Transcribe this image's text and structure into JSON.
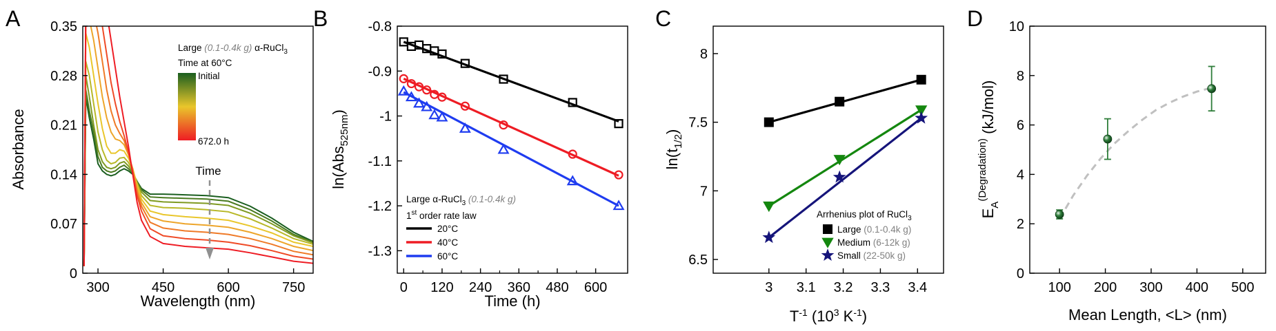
{
  "chart_data": [
    {
      "panel": "A",
      "type": "line",
      "xlabel": "Wavelength (nm)",
      "ylabel": "Absorbance",
      "xlim": [
        265,
        795
      ],
      "ylim": [
        0,
        0.35
      ],
      "xticks": [
        300,
        450,
        600,
        750
      ],
      "yticks": [
        0,
        0.07,
        0.14,
        0.21,
        0.28,
        0.35
      ],
      "ytick_labels": [
        "0",
        "0.07",
        "0.14",
        "0.21",
        "0.28",
        "0.35"
      ],
      "legend": {
        "title_pre": "Large",
        "title_gray": "(0.1-0.4k g)",
        "title_post": "α-RuCl",
        "title_sub": "3",
        "subtitle": "Time at 60°C",
        "colorbar_top": "Initial",
        "colorbar_bottom": "672.0 h",
        "position": "top-right"
      },
      "annotation": "Time",
      "colormap": [
        "#1a5e1f",
        "#e9c62b",
        "#ee1c24"
      ],
      "series": [
        {
          "color": "#1a5e1f",
          "x": [
            268,
            272,
            280,
            290,
            300,
            310,
            320,
            330,
            340,
            350,
            360,
            370,
            380,
            390,
            400,
            420,
            450,
            500,
            550,
            600,
            650,
            700,
            750,
            795
          ],
          "y": [
            0.01,
            0.25,
            0.22,
            0.19,
            0.155,
            0.145,
            0.14,
            0.138,
            0.14,
            0.145,
            0.148,
            0.145,
            0.14,
            0.13,
            0.12,
            0.112,
            0.112,
            0.111,
            0.11,
            0.107,
            0.095,
            0.078,
            0.058,
            0.045
          ]
        },
        {
          "color": "#4a7a20",
          "x": [
            268,
            272,
            280,
            290,
            300,
            310,
            320,
            330,
            340,
            350,
            360,
            370,
            380,
            390,
            400,
            420,
            450,
            500,
            550,
            600,
            650,
            700,
            750,
            795
          ],
          "y": [
            0.01,
            0.26,
            0.23,
            0.2,
            0.165,
            0.15,
            0.145,
            0.143,
            0.145,
            0.15,
            0.153,
            0.148,
            0.142,
            0.13,
            0.118,
            0.108,
            0.107,
            0.106,
            0.105,
            0.102,
            0.09,
            0.074,
            0.055,
            0.044
          ]
        },
        {
          "color": "#7f9a22",
          "x": [
            268,
            272,
            280,
            290,
            300,
            310,
            320,
            330,
            340,
            350,
            360,
            370,
            380,
            390,
            400,
            420,
            450,
            500,
            550,
            600,
            650,
            700,
            750,
            795
          ],
          "y": [
            0.01,
            0.28,
            0.25,
            0.21,
            0.175,
            0.158,
            0.15,
            0.148,
            0.15,
            0.156,
            0.158,
            0.152,
            0.143,
            0.128,
            0.115,
            0.103,
            0.101,
            0.1,
            0.099,
            0.096,
            0.085,
            0.07,
            0.053,
            0.043
          ]
        },
        {
          "color": "#b8b828",
          "x": [
            268,
            272,
            280,
            290,
            300,
            310,
            320,
            330,
            340,
            350,
            360,
            370,
            380,
            390,
            400,
            420,
            450,
            500,
            550,
            600,
            650,
            700,
            750,
            795
          ],
          "y": [
            0.01,
            0.3,
            0.28,
            0.24,
            0.2,
            0.175,
            0.16,
            0.155,
            0.157,
            0.163,
            0.164,
            0.157,
            0.145,
            0.127,
            0.11,
            0.096,
            0.093,
            0.092,
            0.09,
            0.087,
            0.077,
            0.064,
            0.049,
            0.041
          ]
        },
        {
          "color": "#e9c62b",
          "x": [
            268,
            272,
            280,
            290,
            300,
            310,
            320,
            330,
            340,
            350,
            360,
            370,
            380,
            390,
            400,
            420,
            450,
            500,
            550,
            600,
            650,
            700,
            750,
            795
          ],
          "y": [
            0.01,
            0.34,
            0.32,
            0.28,
            0.24,
            0.205,
            0.18,
            0.17,
            0.17,
            0.175,
            0.173,
            0.163,
            0.148,
            0.125,
            0.105,
            0.088,
            0.083,
            0.08,
            0.078,
            0.075,
            0.067,
            0.057,
            0.044,
            0.038
          ]
        },
        {
          "color": "#eda52a",
          "x": [
            268,
            272,
            280,
            290,
            300,
            310,
            320,
            330,
            340,
            350,
            360,
            370,
            380,
            390,
            400,
            420,
            450,
            500,
            550,
            600,
            650,
            700,
            750,
            795
          ],
          "y": [
            0.01,
            0.36,
            0.36,
            0.33,
            0.29,
            0.25,
            0.22,
            0.2,
            0.19,
            0.188,
            0.182,
            0.168,
            0.148,
            0.12,
            0.1,
            0.08,
            0.074,
            0.07,
            0.068,
            0.065,
            0.058,
            0.049,
            0.038,
            0.032
          ]
        },
        {
          "color": "#ef7a27",
          "x": [
            268,
            272,
            280,
            290,
            300,
            310,
            320,
            330,
            340,
            350,
            360,
            370,
            380,
            390,
            400,
            420,
            450,
            500,
            550,
            600,
            650,
            700,
            750,
            795
          ],
          "y": [
            0.01,
            0.38,
            0.38,
            0.37,
            0.34,
            0.3,
            0.26,
            0.23,
            0.21,
            0.198,
            0.188,
            0.17,
            0.145,
            0.115,
            0.095,
            0.072,
            0.064,
            0.06,
            0.058,
            0.055,
            0.049,
            0.041,
            0.031,
            0.026
          ]
        },
        {
          "color": "#ef4a26",
          "x": [
            268,
            272,
            280,
            290,
            300,
            310,
            320,
            330,
            340,
            350,
            360,
            370,
            380,
            390,
            400,
            420,
            450,
            500,
            550,
            600,
            650,
            700,
            750,
            795
          ],
          "y": [
            0.01,
            0.38,
            0.38,
            0.38,
            0.38,
            0.35,
            0.31,
            0.27,
            0.24,
            0.215,
            0.195,
            0.172,
            0.142,
            0.11,
            0.088,
            0.063,
            0.053,
            0.049,
            0.047,
            0.044,
            0.039,
            0.032,
            0.024,
            0.02
          ]
        },
        {
          "color": "#ee1c24",
          "x": [
            268,
            272,
            280,
            290,
            300,
            310,
            320,
            330,
            340,
            350,
            360,
            370,
            380,
            390,
            400,
            420,
            450,
            500,
            550,
            600,
            650,
            700,
            750,
            795
          ],
          "y": [
            0.01,
            0.38,
            0.38,
            0.38,
            0.38,
            0.38,
            0.37,
            0.33,
            0.29,
            0.25,
            0.215,
            0.18,
            0.14,
            0.1,
            0.075,
            0.052,
            0.042,
            0.038,
            0.036,
            0.034,
            0.029,
            0.023,
            0.017,
            0.014
          ]
        }
      ]
    },
    {
      "panel": "B",
      "type": "scatter",
      "xlabel": "Time (h)",
      "ylabel_main": "ln(Abs",
      "ylabel_sub": "525nm",
      "ylabel_close": ")",
      "xlim": [
        -20,
        700
      ],
      "ylim": [
        -1.35,
        -0.8
      ],
      "xticks": [
        0,
        120,
        240,
        360,
        480,
        600
      ],
      "xtick_labels": [
        "0",
        "120",
        "240",
        "360",
        "480",
        "600"
      ],
      "xticks_minor": [
        60,
        180,
        300,
        420,
        540
      ],
      "yticks": [
        -1.3,
        -1.2,
        -1.1,
        -1.0,
        -0.9,
        -0.8
      ],
      "ytick_labels": [
        "-1.3",
        "-1.2",
        "-1.1",
        "-1",
        "-0.9",
        "-0.8"
      ],
      "legend": {
        "title_pre": "Large ",
        "title_mid": "α-RuCl",
        "title_sub": "3",
        "title_gray": "(0.1-0.4k g)",
        "law_sup": "st",
        "law_pre": "1",
        "law_post": " order rate law",
        "position": "bottom-left"
      },
      "series": [
        {
          "name": "20°C",
          "color": "#000000",
          "marker": "square",
          "x": [
            0,
            24,
            48,
            72,
            96,
            120,
            192,
            312,
            528,
            672
          ],
          "y": [
            -0.835,
            -0.845,
            -0.842,
            -0.85,
            -0.855,
            -0.862,
            -0.883,
            -0.918,
            -0.97,
            -1.017
          ],
          "fit": [
            [
              0,
              -0.835
            ],
            [
              672,
              -1.012
            ]
          ]
        },
        {
          "name": "40°C",
          "color": "#ee1c24",
          "marker": "circle",
          "x": [
            0,
            24,
            48,
            72,
            96,
            120,
            192,
            312,
            528,
            672
          ],
          "y": [
            -0.917,
            -0.928,
            -0.935,
            -0.942,
            -0.952,
            -0.958,
            -0.978,
            -1.02,
            -1.085,
            -1.131
          ],
          "fit": [
            [
              0,
              -0.917
            ],
            [
              672,
              -1.133
            ]
          ]
        },
        {
          "name": "60°C",
          "color": "#1f3cf0",
          "marker": "triangle",
          "x": [
            0,
            24,
            48,
            72,
            96,
            120,
            192,
            312,
            528,
            672
          ],
          "y": [
            -0.945,
            -0.958,
            -0.972,
            -0.98,
            -0.998,
            -1.003,
            -1.028,
            -1.075,
            -1.145,
            -1.2
          ],
          "fit": [
            [
              0,
              -0.947
            ],
            [
              672,
              -1.2
            ]
          ]
        }
      ]
    },
    {
      "panel": "C",
      "type": "scatter",
      "xlabel_pre": "T",
      "xlabel_sup": "-1",
      "xlabel_mid": " (10",
      "xlabel_sup2": "3",
      "xlabel_post": " K",
      "xlabel_sup3": "-1",
      "xlabel_end": ")",
      "ylabel_pre": "ln(t",
      "ylabel_sub": "1/2",
      "ylabel_post": ")",
      "xlim": [
        2.85,
        3.47
      ],
      "ylim": [
        6.4,
        8.2
      ],
      "xticks": [
        3.0,
        3.1,
        3.2,
        3.3,
        3.4
      ],
      "xtick_labels": [
        "3",
        "3.1",
        "3.2",
        "3.3",
        "3.4"
      ],
      "yticks": [
        6.5,
        7.0,
        7.5,
        8.0
      ],
      "ytick_labels": [
        "6.5",
        "7",
        "7.5",
        "8"
      ],
      "legend": {
        "title_pre": "Arrhenius plot of RuCl",
        "title_sub": "3",
        "position": "bottom-right"
      },
      "series": [
        {
          "name": "Large",
          "detail": "(0.1-0.4k g)",
          "color": "#000000",
          "marker": "square",
          "x": [
            3.0,
            3.19,
            3.41
          ],
          "y": [
            7.5,
            7.65,
            7.81
          ]
        },
        {
          "name": "Medium",
          "detail": "(6-12k g)",
          "color": "#14870f",
          "marker": "triangle-down",
          "x": [
            3.0,
            3.19,
            3.41
          ],
          "y": [
            6.89,
            7.23,
            7.59
          ]
        },
        {
          "name": "Small",
          "detail": "(22-50k g)",
          "color": "#15147a",
          "marker": "star",
          "x": [
            3.0,
            3.19,
            3.41
          ],
          "y": [
            6.66,
            7.1,
            7.53
          ]
        }
      ]
    },
    {
      "panel": "D",
      "type": "scatter",
      "xlabel": "Mean Length, <L> (nm)",
      "ylabel_pre": "E",
      "ylabel_sub": "A",
      "ylabel_sup": "(Degradation)",
      "ylabel_post": " (kJ/mol)",
      "xlim": [
        35,
        550
      ],
      "ylim": [
        0,
        10
      ],
      "xticks": [
        100,
        200,
        300,
        400,
        500
      ],
      "yticks": [
        0,
        2,
        4,
        6,
        8,
        10
      ],
      "series": [
        {
          "color": "#2e7d3a",
          "x": [
            100,
            205,
            432
          ],
          "y": [
            2.38,
            5.43,
            7.47
          ],
          "err": [
            0.18,
            0.82,
            0.9
          ]
        }
      ],
      "trend": {
        "color": "#c0c0c0",
        "x": [
          100,
          130,
          160,
          190,
          220,
          250,
          280,
          310,
          340,
          370,
          400,
          430
        ],
        "y": [
          2.2,
          3.15,
          3.95,
          4.65,
          5.25,
          5.75,
          6.2,
          6.6,
          6.9,
          7.15,
          7.35,
          7.5
        ]
      }
    }
  ]
}
